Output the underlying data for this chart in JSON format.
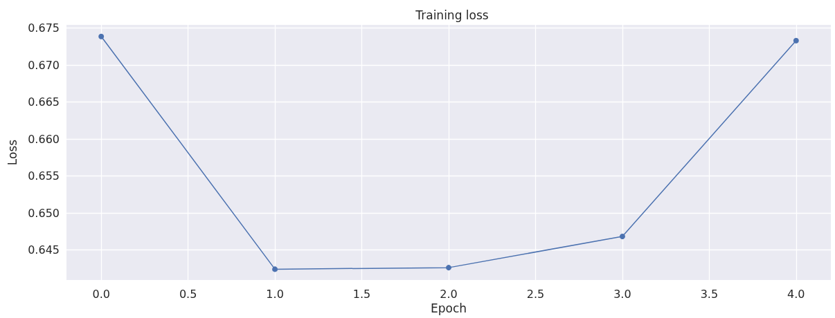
{
  "chart_data": {
    "type": "line",
    "title": "Training loss",
    "xlabel": "Epoch",
    "ylabel": "Loss",
    "x": [
      0,
      1,
      2,
      3,
      4
    ],
    "series": [
      {
        "color": "#4c72b0",
        "values": [
          0.67388,
          0.64241,
          0.64262,
          0.64684,
          0.67332
        ]
      }
    ],
    "xlim": [
      -0.2,
      4.2
    ],
    "xticks": [
      {
        "value": 0,
        "label": "0.0"
      },
      {
        "value": 0.5,
        "label": "0.5"
      },
      {
        "value": 1,
        "label": "1.0"
      },
      {
        "value": 1.5,
        "label": "1.5"
      },
      {
        "value": 2,
        "label": "2.0"
      },
      {
        "value": 2.5,
        "label": "2.5"
      },
      {
        "value": 3,
        "label": "3.0"
      },
      {
        "value": 3.5,
        "label": "3.5"
      },
      {
        "value": 4,
        "label": "4.0"
      }
    ],
    "ylim": [
      0.64095,
      0.67544
    ],
    "yticks": [
      {
        "value": 0.645,
        "label": "0.645"
      },
      {
        "value": 0.65,
        "label": "0.650"
      },
      {
        "value": 0.655,
        "label": "0.655"
      },
      {
        "value": 0.66,
        "label": "0.660"
      },
      {
        "value": 0.665,
        "label": "0.665"
      },
      {
        "value": 0.67,
        "label": "0.670"
      },
      {
        "value": 0.675,
        "label": "0.675"
      }
    ],
    "grid": true,
    "marker": "circle",
    "line_style": "solid"
  }
}
